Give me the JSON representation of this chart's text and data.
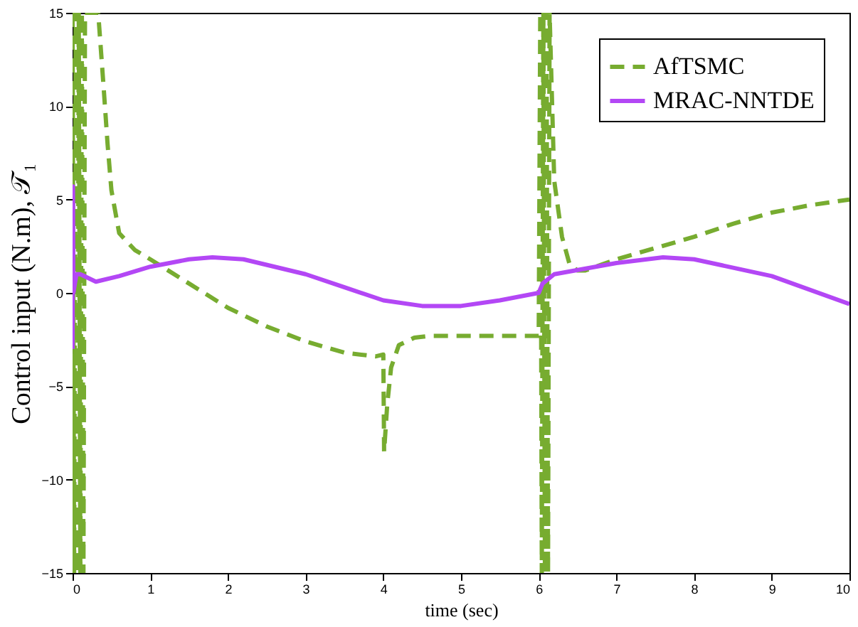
{
  "chart_data": {
    "type": "line",
    "xlabel": "time (sec)",
    "ylabel": "Control input (N.m), 𝒯₁",
    "xlim": [
      0,
      10
    ],
    "ylim": [
      -15,
      15
    ],
    "xticks": [
      0,
      1,
      2,
      3,
      4,
      5,
      6,
      7,
      8,
      9,
      10
    ],
    "yticks": [
      -15,
      -10,
      -5,
      0,
      5,
      10,
      15
    ],
    "grid": false,
    "legend": "top right",
    "series": [
      {
        "name": "AfTSMC",
        "color": "#77ac30",
        "line_style": "dashed",
        "x": [
          0,
          0.02,
          0.04,
          0.06,
          0.08,
          0.1,
          0.12,
          0.14,
          0.16,
          0.33,
          0.4,
          0.45,
          0.5,
          0.6,
          0.8,
          1.0,
          1.5,
          2.0,
          2.5,
          3.0,
          3.5,
          3.9,
          4.0,
          4.01,
          4.05,
          4.1,
          4.2,
          4.4,
          4.6,
          4.8,
          5.0,
          5.2,
          5.4,
          5.6,
          5.8,
          6.0,
          6.02,
          6.04,
          6.06,
          6.08,
          6.1,
          6.12,
          6.14,
          6.2,
          6.3,
          6.4,
          6.5,
          6.6,
          6.8,
          7.0,
          7.5,
          8.0,
          8.5,
          9.0,
          9.5,
          10.0
        ],
        "values": [
          15,
          -15,
          15,
          -15,
          15,
          -15,
          15,
          -15,
          15,
          15,
          11,
          8,
          5.5,
          3.2,
          2.3,
          1.8,
          0.5,
          -0.8,
          -1.8,
          -2.6,
          -3.2,
          -3.4,
          -3.3,
          -8.5,
          -6,
          -4,
          -2.8,
          -2.4,
          -2.3,
          -2.3,
          -2.3,
          -2.3,
          -2.3,
          -2.3,
          -2.3,
          -2.3,
          15,
          -15,
          15,
          -15,
          15,
          -15,
          15,
          6,
          3,
          1.5,
          1.2,
          1.2,
          1.5,
          1.8,
          2.4,
          3.0,
          3.7,
          4.3,
          4.7,
          5.0
        ]
      },
      {
        "name": "MRAC-NNTDE",
        "color": "#b347f5",
        "line_style": "solid",
        "x": [
          0,
          0.005,
          0.01,
          0.05,
          0.1,
          0.3,
          0.6,
          1.0,
          1.5,
          1.8,
          2.2,
          3.0,
          3.5,
          4.0,
          4.5,
          5.0,
          5.5,
          6.0,
          6.05,
          6.2,
          7.0,
          7.6,
          8.0,
          9.0,
          10.0
        ],
        "values": [
          -3,
          5.7,
          0,
          1,
          1,
          0.6,
          0.9,
          1.4,
          1.8,
          1.9,
          1.8,
          1.0,
          0.3,
          -0.4,
          -0.7,
          -0.7,
          -0.4,
          0.0,
          0.5,
          1.0,
          1.6,
          1.9,
          1.8,
          0.9,
          -0.6
        ]
      }
    ]
  }
}
